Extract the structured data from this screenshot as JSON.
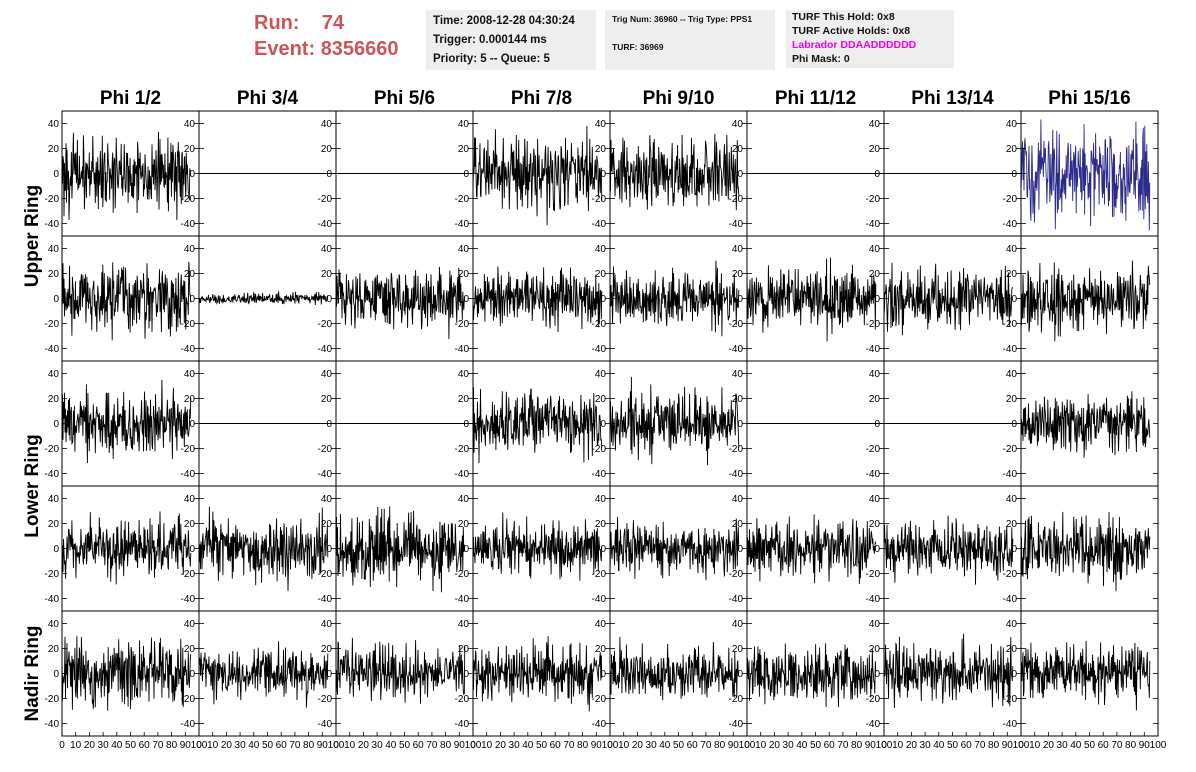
{
  "header": {
    "run_label": "Run:",
    "run_value": "74",
    "event_label": "Event:",
    "event_value": "8356660"
  },
  "time_box": {
    "time": "Time: 2008-12-28 04:30:24",
    "trigger": "Trigger: 0.000144 ms",
    "priority": "Priority: 5 -- Queue: 5"
  },
  "trig_box": {
    "trig": "Trig Num: 36960 -- Trig Type: PPS1",
    "turf": "TURF: 36969"
  },
  "turf_box": {
    "this_hold": "TURF This Hold: 0x8",
    "active_holds": "TURF Active Holds: 0x8",
    "labrador": "Labrador DDAADDDDDD",
    "phi_mask": "Phi Mask: 0"
  },
  "colors": {
    "header_red": "#cc5555",
    "box_grey": "#eeeeee",
    "labrador_magenta": "#ee00ee",
    "trace_black": "#000000",
    "trace_blue": "#2b2b8c"
  },
  "chart_data": {
    "type": "line",
    "columns": [
      "Phi 1/2",
      "Phi 3/4",
      "Phi 5/6",
      "Phi 7/8",
      "Phi 9/10",
      "Phi 11/12",
      "Phi 13/14",
      "Phi 15/16"
    ],
    "row_groups": [
      {
        "label": "Upper Ring",
        "rows": [
          0,
          1
        ]
      },
      {
        "label": "Lower Ring",
        "rows": [
          2,
          3
        ]
      },
      {
        "label": "Nadir Ring",
        "rows": [
          4
        ]
      }
    ],
    "xlim": [
      0,
      100
    ],
    "ylim": [
      -50,
      50
    ],
    "y_ticks": [
      -40,
      -20,
      0,
      20,
      40
    ],
    "x_ticks": [
      0,
      10,
      20,
      30,
      40,
      50,
      60,
      70,
      80,
      90,
      100
    ],
    "samples_per_trace": 260,
    "trace_x_range": [
      0,
      94
    ],
    "grid": false,
    "traces": [
      [
        {
          "amp": 16,
          "mode": "noise",
          "seed": 101
        },
        {
          "amp": 0,
          "mode": "flat",
          "seed": 102
        },
        {
          "amp": 0,
          "mode": "flat",
          "seed": 103
        },
        {
          "amp": 16,
          "mode": "noise",
          "seed": 104
        },
        {
          "amp": 16,
          "mode": "noise",
          "seed": 105
        },
        {
          "amp": 0,
          "mode": "flat",
          "seed": 106
        },
        {
          "amp": 0,
          "mode": "flat",
          "seed": 107
        },
        {
          "amp": 20,
          "mode": "noise",
          "seed": 108,
          "color": "#2b2b8c"
        }
      ],
      [
        {
          "amp": 15,
          "mode": "noise",
          "seed": 201
        },
        {
          "amp": 2.5,
          "mode": "noise",
          "seed": 202
        },
        {
          "amp": 13,
          "mode": "noise",
          "seed": 203
        },
        {
          "amp": 12,
          "mode": "noise",
          "seed": 204
        },
        {
          "amp": 12,
          "mode": "noise",
          "seed": 205
        },
        {
          "amp": 13,
          "mode": "noise",
          "seed": 206
        },
        {
          "amp": 13,
          "mode": "noise",
          "seed": 207
        },
        {
          "amp": 14,
          "mode": "noise",
          "seed": 208
        }
      ],
      [
        {
          "amp": 14,
          "mode": "noise",
          "seed": 301
        },
        {
          "amp": 0,
          "mode": "flat",
          "seed": 302
        },
        {
          "amp": 0,
          "mode": "flat",
          "seed": 303
        },
        {
          "amp": 13,
          "mode": "noise",
          "seed": 304
        },
        {
          "amp": 14,
          "mode": "noise",
          "seed": 305
        },
        {
          "amp": 0,
          "mode": "flat",
          "seed": 306
        },
        {
          "amp": 0,
          "mode": "flat",
          "seed": 307
        },
        {
          "amp": 12,
          "mode": "noise",
          "seed": 308
        }
      ],
      [
        {
          "amp": 13,
          "mode": "noise",
          "seed": 401
        },
        {
          "amp": 15,
          "mode": "noise",
          "seed": 402
        },
        {
          "amp": 15,
          "mode": "noise",
          "seed": 403
        },
        {
          "amp": 12,
          "mode": "noise",
          "seed": 404
        },
        {
          "amp": 12,
          "mode": "noise",
          "seed": 405
        },
        {
          "amp": 13,
          "mode": "noise",
          "seed": 406
        },
        {
          "amp": 12,
          "mode": "noise",
          "seed": 407
        },
        {
          "amp": 14,
          "mode": "noise",
          "seed": 408
        }
      ],
      [
        {
          "amp": 14,
          "mode": "noise",
          "seed": 501
        },
        {
          "amp": 11,
          "mode": "noise",
          "seed": 502
        },
        {
          "amp": 13,
          "mode": "noise",
          "seed": 503
        },
        {
          "amp": 13,
          "mode": "noise",
          "seed": 504
        },
        {
          "amp": 12,
          "mode": "noise",
          "seed": 505
        },
        {
          "amp": 12,
          "mode": "noise",
          "seed": 506
        },
        {
          "amp": 13,
          "mode": "noise",
          "seed": 507
        },
        {
          "amp": 13,
          "mode": "noise",
          "seed": 508
        }
      ]
    ]
  }
}
